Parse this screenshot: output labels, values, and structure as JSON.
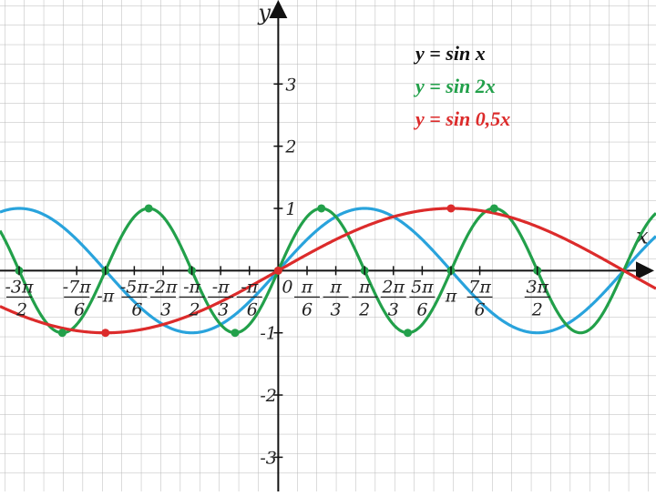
{
  "chart_data": {
    "type": "line",
    "xlabel": "x",
    "ylabel": "y",
    "origin_label": "0",
    "xlim": [
      -5.06,
      6.87
    ],
    "ylim": [
      -3.55,
      4.35
    ],
    "grid": true,
    "legend_position": "top-right",
    "y_ticks": [
      {
        "value": 3,
        "label": "3"
      },
      {
        "value": 2,
        "label": "2"
      },
      {
        "value": 1,
        "label": "1"
      },
      {
        "value": -1,
        "label": "-1"
      },
      {
        "value": -2,
        "label": "-2"
      },
      {
        "value": -3,
        "label": "-3"
      }
    ],
    "x_ticks": [
      {
        "value": -4.712,
        "num": "3π",
        "den": "2",
        "sign": "-"
      },
      {
        "value": -3.665,
        "num": "7π",
        "den": "6",
        "sign": "-"
      },
      {
        "value": -3.142,
        "num": "π",
        "den": "",
        "sign": "-"
      },
      {
        "value": -2.618,
        "num": "5π",
        "den": "6",
        "sign": "-"
      },
      {
        "value": -2.094,
        "num": "2π",
        "den": "3",
        "sign": "-"
      },
      {
        "value": -1.571,
        "num": "π",
        "den": "2",
        "sign": "-"
      },
      {
        "value": -1.047,
        "num": "π",
        "den": "3",
        "sign": "-"
      },
      {
        "value": -0.524,
        "num": "π",
        "den": "6",
        "sign": "-"
      },
      {
        "value": 0.524,
        "num": "π",
        "den": "6",
        "sign": ""
      },
      {
        "value": 1.047,
        "num": "π",
        "den": "3",
        "sign": ""
      },
      {
        "value": 1.571,
        "num": "π",
        "den": "2",
        "sign": ""
      },
      {
        "value": 2.094,
        "num": "2π",
        "den": "3",
        "sign": ""
      },
      {
        "value": 2.618,
        "num": "5π",
        "den": "6",
        "sign": ""
      },
      {
        "value": 3.142,
        "num": "π",
        "den": "",
        "sign": ""
      },
      {
        "value": 3.665,
        "num": "7π",
        "den": "6",
        "sign": ""
      },
      {
        "value": 4.712,
        "num": "3π",
        "den": "2",
        "sign": ""
      }
    ],
    "series": [
      {
        "name": "y = sin x",
        "func": "sin",
        "k": 1,
        "color": "#29a3dc",
        "markers": []
      },
      {
        "name": "y = sin 2x",
        "func": "sin",
        "k": 2,
        "color": "#22a04a",
        "markers": [
          -4.712,
          -3.927,
          -3.142,
          -2.356,
          -1.571,
          -0.785,
          0,
          0.785,
          1.571,
          2.356,
          3.142,
          3.927,
          4.712
        ]
      },
      {
        "name": "y = sin 0,5x",
        "func": "sin",
        "k": 0.5,
        "color": "#dc2b2b",
        "markers": [
          -3.142,
          0,
          3.142
        ]
      }
    ]
  }
}
